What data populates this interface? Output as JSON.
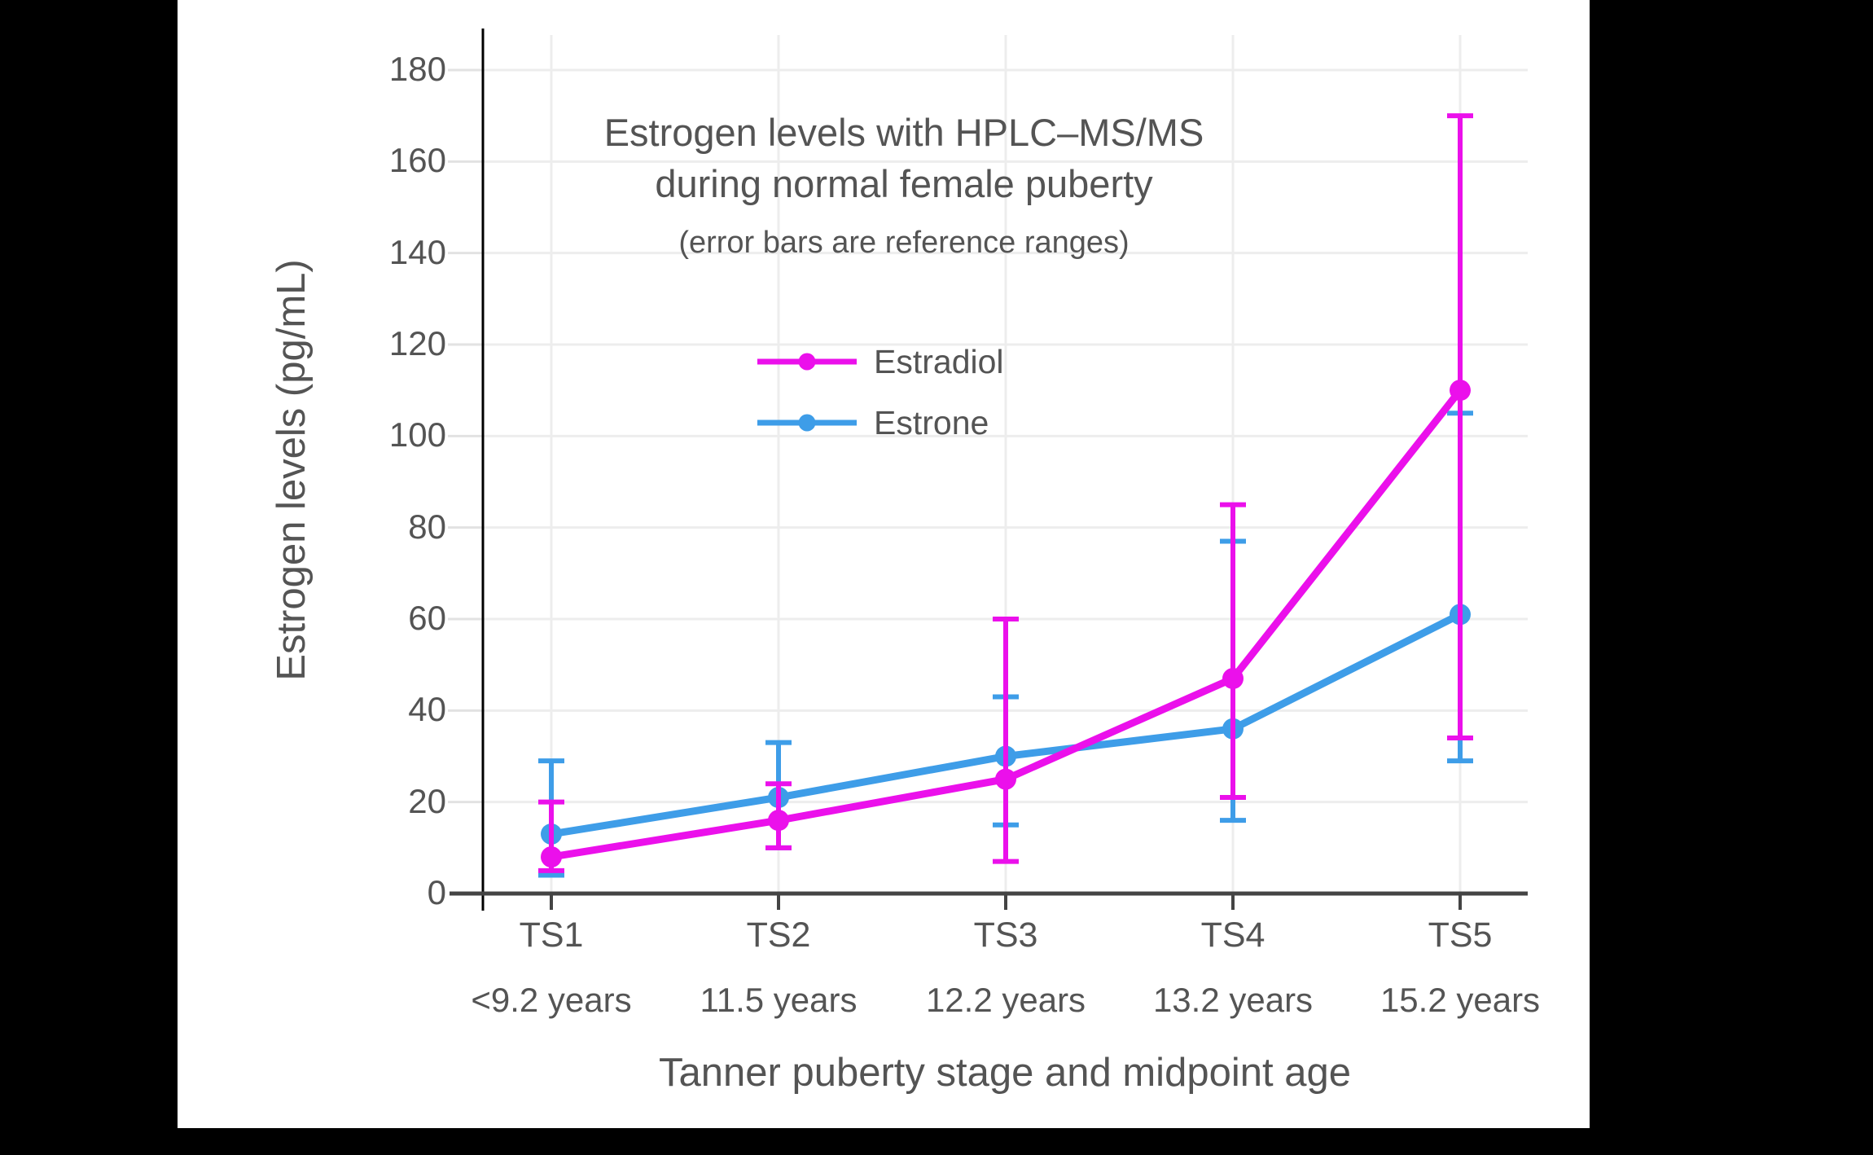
{
  "page": {
    "background_color": "#000000",
    "panel_color": "#ffffff"
  },
  "chart_data": {
    "type": "line",
    "title_line1": "Estrogen levels with HPLC–MS/MS",
    "title_line2": "during normal female puberty",
    "subtitle": "(error bars are reference ranges)",
    "ylabel": "Estrogen levels (pg/mL)",
    "xlabel": "Tanner puberty stage and midpoint age",
    "categories": [
      "TS1",
      "TS2",
      "TS3",
      "TS4",
      "TS5"
    ],
    "category_ages": [
      "<9.2 years",
      "11.5 years",
      "12.2 years",
      "13.2 years",
      "15.2 years"
    ],
    "yticks": [
      0,
      20,
      40,
      60,
      80,
      100,
      120,
      140,
      160,
      180
    ],
    "ylim": [
      0,
      189
    ],
    "grid": true,
    "error_bar_meaning": "reference ranges",
    "legend_position": "upper left area, below subtitle",
    "series": [
      {
        "name": "Estradiol",
        "color": "#EB10EB",
        "values": [
          8,
          16,
          25,
          47,
          110
        ],
        "error_low": [
          5,
          10,
          7,
          21,
          34
        ],
        "error_high": [
          20,
          24,
          60,
          85,
          170
        ]
      },
      {
        "name": "Estrone",
        "color": "#3E9DE8",
        "values": [
          13,
          21,
          30,
          36,
          61
        ],
        "error_low": [
          4,
          10,
          15,
          16,
          29
        ],
        "error_high": [
          29,
          33,
          43,
          77,
          105
        ]
      }
    ],
    "style": {
      "text_color": "#545454",
      "axis_color": "#444444",
      "spine_color": "#000000",
      "grid_color": "#ededed",
      "tick_stub_color": "#e2e2e2"
    }
  }
}
